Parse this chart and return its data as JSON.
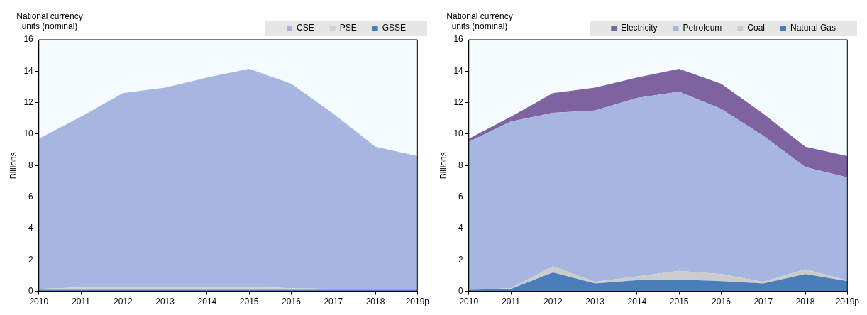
{
  "chart_data": [
    {
      "type": "area",
      "stacked": true,
      "ylabel": "Billions",
      "annotations": [
        "National currency units (nominal)"
      ],
      "categories": [
        "2010",
        "2011",
        "2012",
        "2013",
        "2014",
        "2015",
        "2016",
        "2017",
        "2018",
        "2019p"
      ],
      "ylim": [
        0,
        16
      ],
      "yticks": [
        0,
        2,
        4,
        6,
        8,
        10,
        12,
        14,
        16
      ],
      "grid": false,
      "legend": "top",
      "series": [
        {
          "name": "GSSE",
          "color": "#4a7ebb",
          "values": [
            0.1,
            0.1,
            0.1,
            0.1,
            0.1,
            0.1,
            0.1,
            0.1,
            0.1,
            0.1
          ]
        },
        {
          "name": "PSE",
          "color": "#d0d0d0",
          "values": [
            0.05,
            0.15,
            0.15,
            0.2,
            0.2,
            0.2,
            0.1,
            0.05,
            0.05,
            0.05
          ]
        },
        {
          "name": "CSE",
          "color": "#a7b6e0",
          "values": [
            9.55,
            10.85,
            12.35,
            12.65,
            13.3,
            13.85,
            13.0,
            11.15,
            9.05,
            8.45
          ]
        }
      ]
    },
    {
      "type": "area",
      "stacked": true,
      "ylabel": "Billions",
      "annotations": [
        "National currency units (nominal)"
      ],
      "categories": [
        "2010",
        "2011",
        "2012",
        "2013",
        "2014",
        "2015",
        "2016",
        "2017",
        "2018",
        "2019p"
      ],
      "ylim": [
        0,
        16
      ],
      "yticks": [
        0,
        2,
        4,
        6,
        8,
        10,
        12,
        14,
        16
      ],
      "grid": false,
      "legend": "top",
      "series": [
        {
          "name": "Natural Gas",
          "color": "#4a7ebb",
          "values": [
            0.1,
            0.15,
            1.2,
            0.5,
            0.7,
            0.75,
            0.65,
            0.5,
            1.1,
            0.65
          ]
        },
        {
          "name": "Coal",
          "color": "#cccccc",
          "values": [
            0,
            0.05,
            0.4,
            0.1,
            0.25,
            0.55,
            0.45,
            0.1,
            0.3,
            0.05
          ]
        },
        {
          "name": "Petroleum",
          "color": "#a7b6e0",
          "values": [
            9.4,
            10.6,
            9.75,
            10.9,
            11.35,
            11.4,
            10.5,
            9.3,
            6.5,
            6.55
          ]
        },
        {
          "name": "Electricity",
          "color": "#7f63a1",
          "values": [
            0.2,
            0.3,
            1.25,
            1.45,
            1.3,
            1.45,
            1.6,
            1.4,
            1.3,
            1.35
          ]
        }
      ]
    }
  ]
}
